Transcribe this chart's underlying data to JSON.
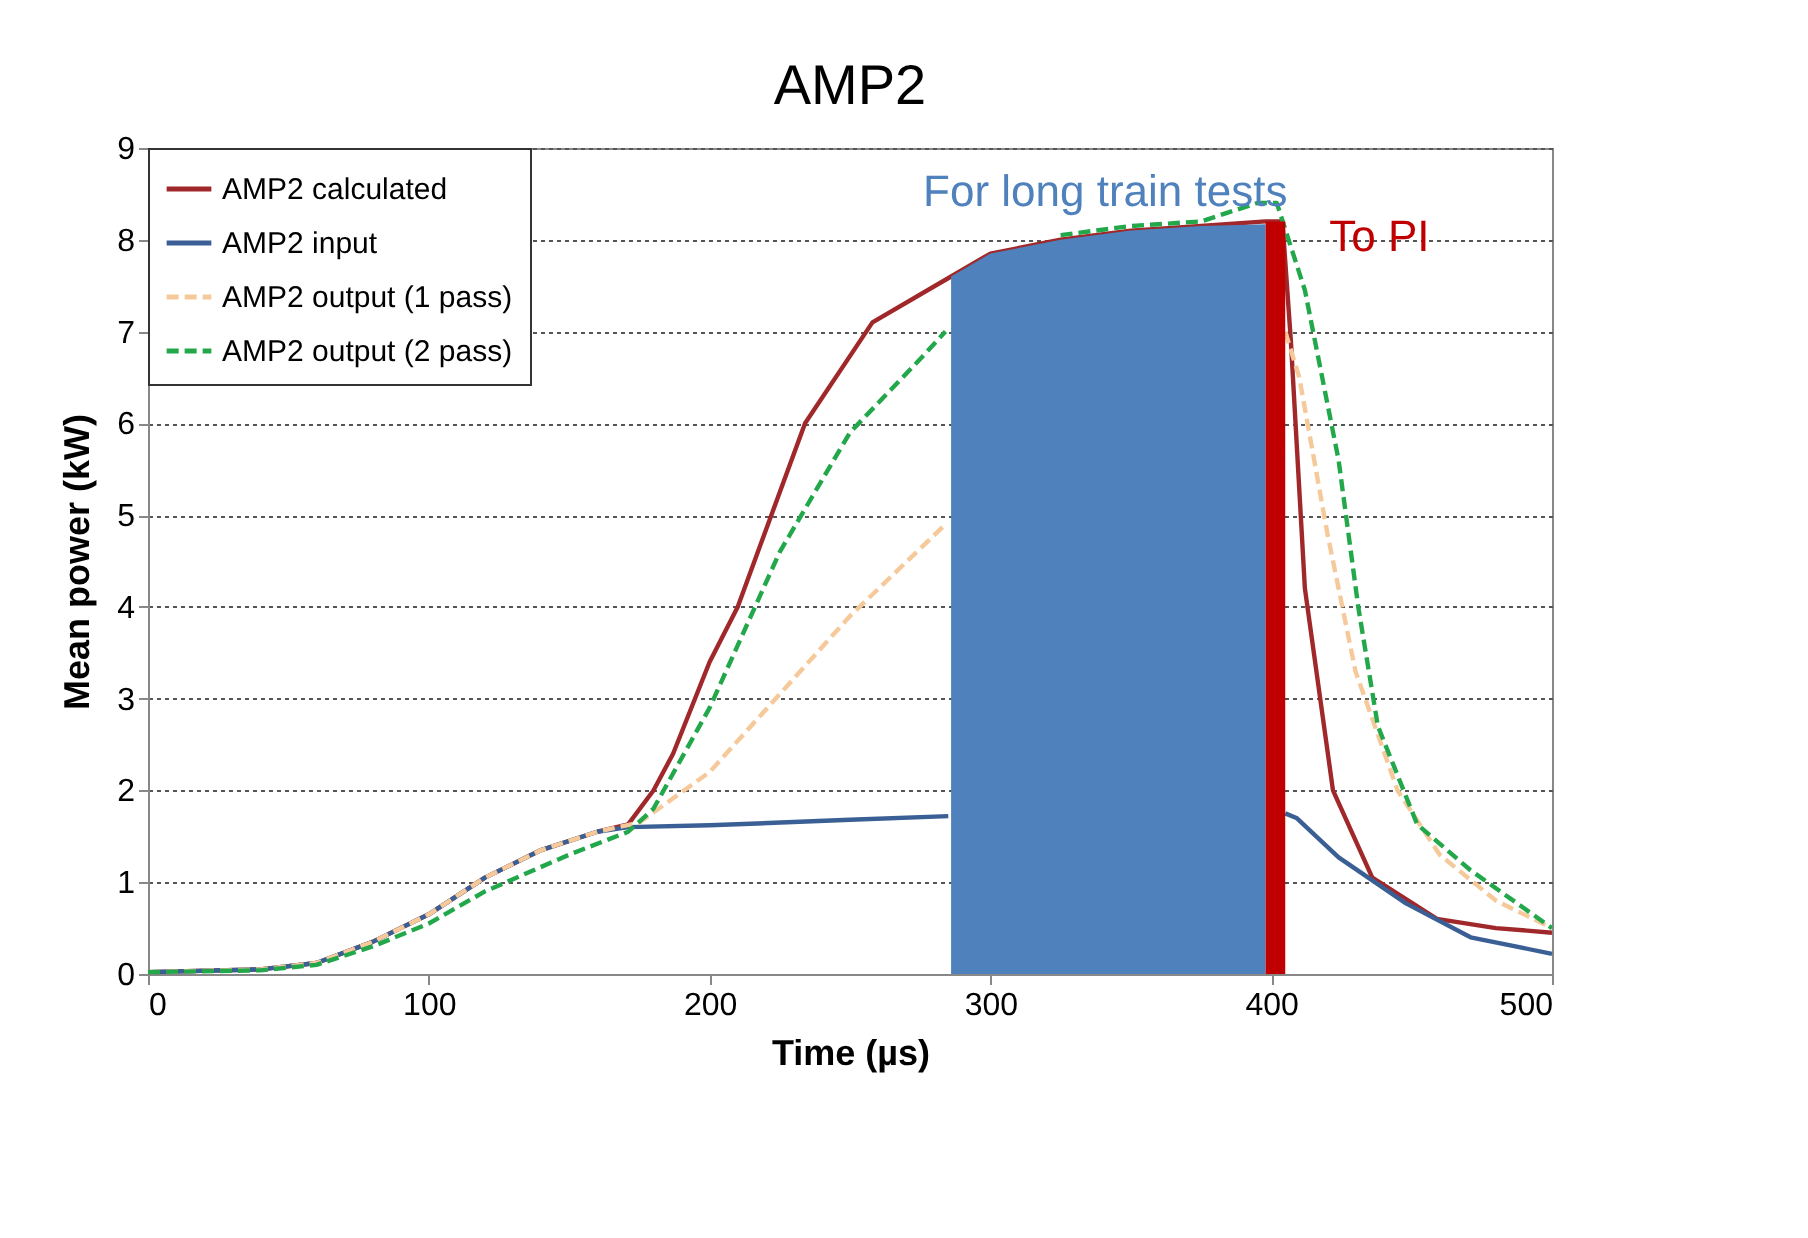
{
  "chart_data": {
    "type": "line",
    "title": "AMP2",
    "xlabel": "Time (µs)",
    "ylabel": "Mean power (kW)",
    "xlim": [
      0,
      500
    ],
    "xticks": [
      0,
      100,
      200,
      300,
      400,
      500
    ],
    "ylim": [
      0,
      9
    ],
    "yticks": [
      0,
      1,
      2,
      3,
      4,
      5,
      6,
      7,
      8,
      9
    ],
    "grid": "y",
    "legend": "top left",
    "annotations": [
      "For long train tests",
      "To PI"
    ],
    "series": [
      {
        "name": "AMP2 calculated",
        "color": "#a0282a",
        "line_style": "solid",
        "x": [
          0,
          40,
          60,
          80,
          100,
          120,
          140,
          160,
          171,
          180,
          187,
          200,
          210,
          234,
          258,
          286,
          300,
          325,
          350,
          375,
          398,
          404,
          407,
          412,
          422,
          436,
          459,
          480,
          500
        ],
        "values": [
          0.02,
          0.05,
          0.12,
          0.35,
          0.65,
          1.05,
          1.35,
          1.55,
          1.63,
          2.0,
          2.4,
          3.4,
          4.0,
          6.0,
          7.1,
          7.6,
          7.85,
          8.0,
          8.1,
          8.15,
          8.2,
          8.2,
          6.9,
          4.2,
          2.0,
          1.05,
          0.6,
          0.5,
          0.45
        ]
      },
      {
        "name": "AMP2 input",
        "color": "#3a5f95",
        "line_style": "solid",
        "x": [
          0,
          40,
          60,
          80,
          100,
          120,
          140,
          160,
          171,
          200,
          250,
          285,
          340,
          405,
          409,
          424,
          448,
          471,
          500
        ],
        "values": [
          0.02,
          0.05,
          0.12,
          0.35,
          0.65,
          1.05,
          1.35,
          1.55,
          1.6,
          1.62,
          1.68,
          1.72,
          null,
          1.75,
          1.7,
          1.27,
          0.77,
          0.4,
          0.22
        ]
      },
      {
        "name": "AMP2 output (1 pass)",
        "color": "#f5c99a",
        "line_style": "dashed",
        "x": [
          0,
          40,
          60,
          80,
          100,
          120,
          140,
          160,
          175,
          200,
          250,
          284,
          340,
          405,
          410,
          420,
          430,
          445,
          460,
          480,
          500
        ],
        "values": [
          0.02,
          0.05,
          0.12,
          0.35,
          0.65,
          1.05,
          1.35,
          1.55,
          1.65,
          2.2,
          3.9,
          4.9,
          null,
          7.0,
          6.5,
          4.8,
          3.3,
          2.0,
          1.3,
          0.8,
          0.5
        ]
      },
      {
        "name": "AMP2 output (2 pass)",
        "color": "#22a84a",
        "line_style": "dashed",
        "x": [
          0,
          40,
          60,
          80,
          100,
          120,
          150,
          171,
          180,
          200,
          225,
          250,
          275,
          284,
          300,
          325,
          350,
          375,
          395,
          402,
          412,
          424,
          431,
          438,
          452,
          471,
          500
        ],
        "values": [
          0.02,
          0.04,
          0.1,
          0.3,
          0.55,
          0.9,
          1.3,
          1.55,
          1.8,
          2.9,
          4.6,
          5.9,
          6.7,
          7.0,
          null,
          8.05,
          8.15,
          8.2,
          8.4,
          8.4,
          7.45,
          5.6,
          4.0,
          2.7,
          1.63,
          1.13,
          0.5
        ]
      },
      {
        "type": "area",
        "color": "#4f81bd",
        "x": [
          286,
          300,
          325,
          350,
          375,
          398
        ],
        "values": [
          7.6,
          7.85,
          8.0,
          8.1,
          8.15,
          8.17
        ]
      },
      {
        "type": "area",
        "color": "#c00000",
        "x": [
          398,
          405
        ],
        "values": [
          8.2,
          8.2
        ]
      }
    ]
  }
}
